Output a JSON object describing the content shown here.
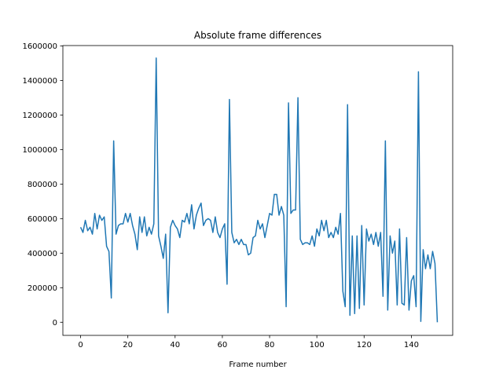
{
  "chart_data": {
    "type": "line",
    "title": "Absolute frame differences",
    "xlabel": "Frame number",
    "ylabel": "",
    "xlim": [
      -7.5,
      157.5
    ],
    "ylim": [
      -76000,
      1602000
    ],
    "x_ticks": [
      0,
      20,
      40,
      60,
      80,
      100,
      120,
      140
    ],
    "y_ticks": [
      0,
      200000,
      400000,
      600000,
      800000,
      1000000,
      1200000,
      1400000,
      1600000
    ],
    "y_tick_labels": [
      "0",
      "200000",
      "400000",
      "600000",
      "800000",
      "1000000",
      "1200000",
      "1400000",
      "1600000"
    ],
    "grid": false,
    "legend": "none",
    "series": [
      {
        "color": "#1f77b4",
        "x_start": 0,
        "x_step": 1,
        "values": [
          550000,
          520000,
          590000,
          530000,
          550000,
          510000,
          630000,
          540000,
          620000,
          590000,
          610000,
          440000,
          410000,
          140000,
          1050000,
          510000,
          560000,
          570000,
          570000,
          630000,
          580000,
          630000,
          560000,
          510000,
          420000,
          610000,
          520000,
          610000,
          500000,
          550000,
          510000,
          570000,
          1530000,
          500000,
          440000,
          370000,
          510000,
          55000,
          550000,
          590000,
          560000,
          540000,
          490000,
          590000,
          580000,
          630000,
          570000,
          680000,
          540000,
          620000,
          660000,
          690000,
          560000,
          590000,
          600000,
          590000,
          520000,
          610000,
          520000,
          490000,
          540000,
          570000,
          220000,
          1290000,
          520000,
          460000,
          480000,
          450000,
          480000,
          450000,
          450000,
          390000,
          400000,
          490000,
          500000,
          590000,
          540000,
          570000,
          490000,
          560000,
          630000,
          620000,
          740000,
          740000,
          620000,
          670000,
          620000,
          90000,
          1270000,
          630000,
          650000,
          650000,
          1300000,
          480000,
          450000,
          460000,
          460000,
          450000,
          500000,
          440000,
          540000,
          500000,
          590000,
          530000,
          590000,
          490000,
          520000,
          490000,
          550000,
          510000,
          630000,
          180000,
          90000,
          1260000,
          40000,
          500000,
          50000,
          500000,
          80000,
          560000,
          100000,
          540000,
          470000,
          510000,
          450000,
          520000,
          440000,
          520000,
          150000,
          1050000,
          70000,
          500000,
          400000,
          470000,
          100000,
          540000,
          110000,
          100000,
          490000,
          70000,
          240000,
          270000,
          90000,
          1450000,
          5000,
          420000,
          310000,
          390000,
          310000,
          410000,
          340000,
          0
        ]
      }
    ]
  }
}
